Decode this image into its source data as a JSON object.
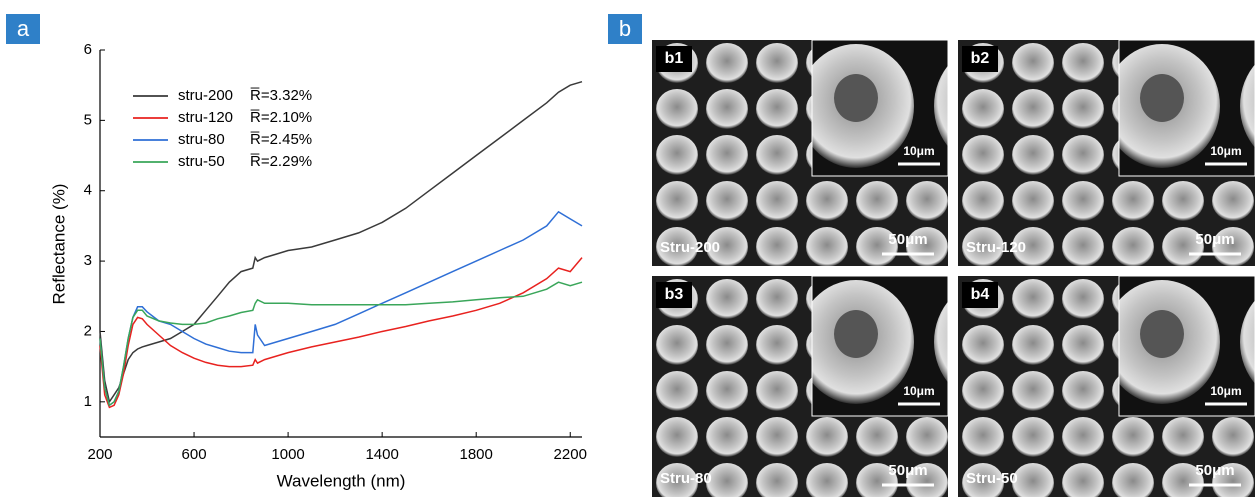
{
  "panel_a": {
    "label": "a"
  },
  "chart_data": {
    "type": "line",
    "xlabel": "Wavelength (nm)",
    "ylabel": "Reflectance (%)",
    "xlim": [
      200,
      2250
    ],
    "xticks": [
      200,
      600,
      1000,
      1400,
      1800,
      2200
    ],
    "ylim": [
      0.5,
      6
    ],
    "yticks": [
      1,
      2,
      3,
      4,
      5,
      6
    ],
    "x": [
      200,
      220,
      240,
      260,
      280,
      300,
      320,
      340,
      360,
      380,
      400,
      450,
      500,
      550,
      600,
      650,
      700,
      750,
      800,
      850,
      860,
      870,
      900,
      950,
      1000,
      1100,
      1200,
      1300,
      1400,
      1500,
      1600,
      1700,
      1800,
      1900,
      2000,
      2100,
      2150,
      2200,
      2250
    ],
    "series": [
      {
        "name": "stru-200",
        "note": "R̅=3.32%",
        "color": "#3a3a3a",
        "values": [
          2.0,
          1.3,
          1.0,
          1.1,
          1.2,
          1.4,
          1.6,
          1.7,
          1.75,
          1.78,
          1.8,
          1.85,
          1.9,
          2.0,
          2.1,
          2.3,
          2.5,
          2.7,
          2.85,
          2.9,
          3.05,
          3.0,
          3.05,
          3.1,
          3.15,
          3.2,
          3.3,
          3.4,
          3.55,
          3.75,
          4.0,
          4.25,
          4.5,
          4.75,
          5.0,
          5.25,
          5.4,
          5.5,
          5.55
        ]
      },
      {
        "name": "stru-120",
        "note": "R̅=2.10%",
        "color": "#e8221f",
        "values": [
          1.8,
          1.1,
          0.92,
          0.95,
          1.1,
          1.4,
          1.8,
          2.1,
          2.2,
          2.18,
          2.1,
          1.95,
          1.8,
          1.7,
          1.62,
          1.56,
          1.52,
          1.5,
          1.5,
          1.52,
          1.6,
          1.55,
          1.6,
          1.65,
          1.7,
          1.78,
          1.85,
          1.92,
          2.0,
          2.07,
          2.15,
          2.22,
          2.3,
          2.4,
          2.55,
          2.75,
          2.9,
          2.85,
          3.05
        ]
      },
      {
        "name": "stru-80",
        "note": "R̅=2.45%",
        "color": "#2f6fd6",
        "values": [
          1.9,
          1.2,
          0.95,
          1.0,
          1.15,
          1.5,
          1.9,
          2.2,
          2.35,
          2.35,
          2.28,
          2.15,
          2.1,
          2.0,
          1.9,
          1.82,
          1.77,
          1.72,
          1.7,
          1.7,
          2.1,
          1.95,
          1.8,
          1.85,
          1.9,
          2.0,
          2.1,
          2.25,
          2.4,
          2.55,
          2.7,
          2.85,
          3.0,
          3.15,
          3.3,
          3.5,
          3.7,
          3.6,
          3.5
        ]
      },
      {
        "name": "stru-50",
        "note": "R̅=2.29%",
        "color": "#3aa65a",
        "values": [
          1.9,
          1.2,
          0.95,
          1.0,
          1.15,
          1.5,
          1.9,
          2.2,
          2.3,
          2.3,
          2.22,
          2.15,
          2.12,
          2.1,
          2.1,
          2.12,
          2.18,
          2.22,
          2.27,
          2.3,
          2.4,
          2.45,
          2.4,
          2.4,
          2.4,
          2.38,
          2.38,
          2.38,
          2.38,
          2.38,
          2.4,
          2.42,
          2.45,
          2.48,
          2.5,
          2.6,
          2.7,
          2.65,
          2.7
        ]
      }
    ]
  },
  "panel_b": {
    "label": "b",
    "images": [
      {
        "tag": "b1",
        "sample": "Stru-200",
        "scale": "50μm",
        "inset_scale": "10μm"
      },
      {
        "tag": "b2",
        "sample": "Stru-120",
        "scale": "50μm",
        "inset_scale": "10μm"
      },
      {
        "tag": "b3",
        "sample": "Stru-80",
        "scale": "50μm",
        "inset_scale": "10μm"
      },
      {
        "tag": "b4",
        "sample": "Stru-50",
        "scale": "50μm",
        "inset_scale": "10μm"
      }
    ]
  }
}
